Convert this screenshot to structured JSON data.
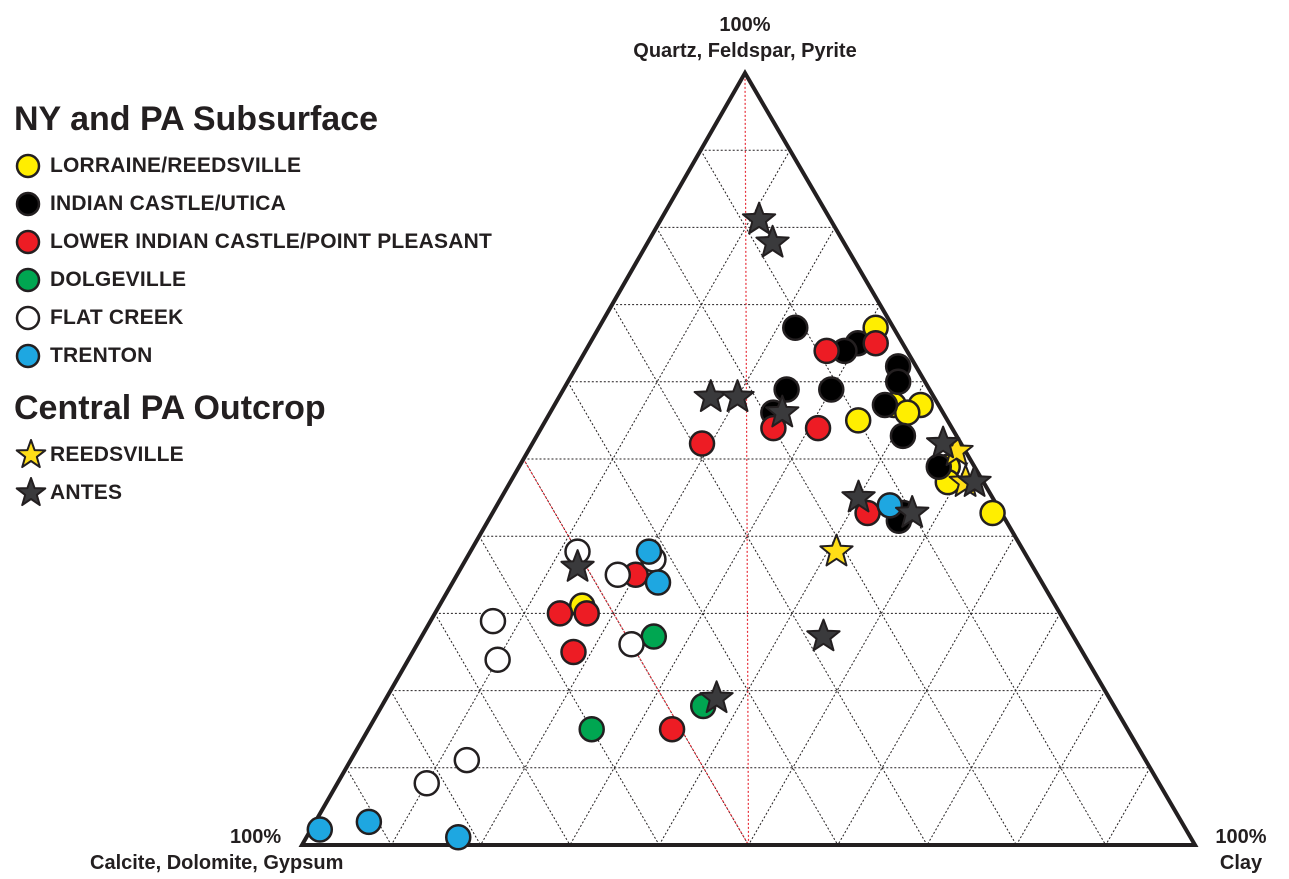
{
  "chart_data": {
    "type": "scatter",
    "subtype": "ternary",
    "vertices": {
      "top": {
        "pct": "100%",
        "name": "Quartz, Feldspar, Pyrite"
      },
      "left": {
        "pct": "100%",
        "name": "Calcite, Dolomite, Gypsum"
      },
      "right": {
        "pct": "100%",
        "name": "Clay"
      }
    },
    "grid": true,
    "grid_interval": 10,
    "highlight_triangle": {
      "qfp": [
        50,
        0,
        0
      ],
      "carb": [
        50,
        50,
        0
      ],
      "clay": [
        0,
        50,
        50
      ]
    },
    "legend": {
      "sections": [
        {
          "title": "NY and PA Subsurface",
          "items": [
            {
              "name": "LORRAINE/REEDSVILLE",
              "marker": "circle",
              "color": "#ffee00"
            },
            {
              "name": "INDIAN CASTLE/UTICA",
              "marker": "circle",
              "color": "#000000"
            },
            {
              "name": "LOWER INDIAN CASTLE/POINT PLEASANT",
              "marker": "circle",
              "color": "#ed1c24"
            },
            {
              "name": "DOLGEVILLE",
              "marker": "circle",
              "color": "#00a651"
            },
            {
              "name": "FLAT CREEK",
              "marker": "circle",
              "color": "#ffffff"
            },
            {
              "name": "TRENTON",
              "marker": "circle",
              "color": "#1ea7e1"
            }
          ]
        },
        {
          "title": "Central PA Outcrop",
          "items": [
            {
              "name": "REEDSVILLE",
              "marker": "star",
              "color": "#ffde17"
            },
            {
              "name": "ANTES",
              "marker": "star",
              "color": "#3a3a3c"
            }
          ]
        }
      ]
    },
    "series": [
      {
        "name": "LORRAINE/REEDSVILLE",
        "marker": "circle",
        "color": "#ffee00",
        "points": [
          {
            "qfp": 67,
            "carb": 2,
            "clay": 31
          },
          {
            "qfp": 57,
            "carb": 2,
            "clay": 41
          },
          {
            "qfp": 57,
            "carb": 5,
            "clay": 38
          },
          {
            "qfp": 56,
            "carb": 4,
            "clay": 40
          },
          {
            "qfp": 55,
            "carb": 10,
            "clay": 35
          },
          {
            "qfp": 49,
            "carb": 3,
            "clay": 48
          },
          {
            "qfp": 47,
            "carb": 4,
            "clay": 49
          },
          {
            "qfp": 43,
            "carb": 1,
            "clay": 56
          },
          {
            "qfp": 31,
            "carb": 53,
            "clay": 16
          }
        ]
      },
      {
        "name": "INDIAN CASTLE/UTICA",
        "marker": "circle",
        "color": "#000000",
        "points": [
          {
            "qfp": 67,
            "carb": 11,
            "clay": 22
          },
          {
            "qfp": 65,
            "carb": 5,
            "clay": 30
          },
          {
            "qfp": 64,
            "carb": 7,
            "clay": 29
          },
          {
            "qfp": 62,
            "carb": 2,
            "clay": 36
          },
          {
            "qfp": 60,
            "carb": 3,
            "clay": 37
          },
          {
            "qfp": 59,
            "carb": 11,
            "clay": 30
          },
          {
            "qfp": 59,
            "carb": 16,
            "clay": 25
          },
          {
            "qfp": 57,
            "carb": 6,
            "clay": 37
          },
          {
            "qfp": 56,
            "carb": 19,
            "clay": 25
          },
          {
            "qfp": 53,
            "carb": 6,
            "clay": 41
          },
          {
            "qfp": 49,
            "carb": 4,
            "clay": 47
          },
          {
            "qfp": 43,
            "carb": 11,
            "clay": 46
          },
          {
            "qfp": 42,
            "carb": 12,
            "clay": 46
          }
        ]
      },
      {
        "name": "LOWER INDIAN CASTLE/POINT PLEASANT",
        "marker": "circle",
        "color": "#ed1c24",
        "points": [
          {
            "qfp": 65,
            "carb": 3,
            "clay": 32
          },
          {
            "qfp": 64,
            "carb": 9,
            "clay": 27
          },
          {
            "qfp": 54,
            "carb": 15,
            "clay": 31
          },
          {
            "qfp": 54,
            "carb": 20,
            "clay": 26
          },
          {
            "qfp": 52,
            "carb": 29,
            "clay": 19
          },
          {
            "qfp": 43,
            "carb": 15,
            "clay": 42
          },
          {
            "qfp": 35,
            "carb": 45,
            "clay": 20
          },
          {
            "qfp": 30,
            "carb": 56,
            "clay": 14
          },
          {
            "qfp": 30,
            "carb": 53,
            "clay": 17
          },
          {
            "qfp": 25,
            "carb": 57,
            "clay": 18
          },
          {
            "qfp": 15,
            "carb": 51,
            "clay": 34
          }
        ]
      },
      {
        "name": "DOLGEVILLE",
        "marker": "circle",
        "color": "#00a651",
        "points": [
          {
            "qfp": 27,
            "carb": 47,
            "clay": 26
          },
          {
            "qfp": 18,
            "carb": 46,
            "clay": 36
          },
          {
            "qfp": 15,
            "carb": 60,
            "clay": 25
          }
        ]
      },
      {
        "name": "FLAT CREEK",
        "marker": "circle",
        "color": "#ffffff",
        "points": [
          {
            "qfp": 38,
            "carb": 50,
            "clay": 12
          },
          {
            "qfp": 37,
            "carb": 42,
            "clay": 21
          },
          {
            "qfp": 35,
            "carb": 47,
            "clay": 18
          },
          {
            "qfp": 29,
            "carb": 64,
            "clay": 7
          },
          {
            "qfp": 26,
            "carb": 50,
            "clay": 24
          },
          {
            "qfp": 24,
            "carb": 66,
            "clay": 10
          },
          {
            "qfp": 11,
            "carb": 76,
            "clay": 13
          },
          {
            "qfp": 8,
            "carb": 82,
            "clay": 10
          }
        ]
      },
      {
        "name": "TRENTON",
        "marker": "circle",
        "color": "#1ea7e1",
        "points": [
          {
            "qfp": 44,
            "carb": 12,
            "clay": 44
          },
          {
            "qfp": 38,
            "carb": 42,
            "clay": 20
          },
          {
            "qfp": 34,
            "carb": 43,
            "clay": 23
          },
          {
            "qfp": 2,
            "carb": 97,
            "clay": 1
          },
          {
            "qfp": 3,
            "carb": 91,
            "clay": 6
          },
          {
            "qfp": 1,
            "carb": 82,
            "clay": 17
          }
        ]
      },
      {
        "name": "REEDSVILLE",
        "marker": "star",
        "color": "#ffde17",
        "points": [
          {
            "qfp": 51,
            "carb": 1,
            "clay": 48
          },
          {
            "qfp": 47,
            "carb": 2,
            "clay": 51
          },
          {
            "qfp": 38,
            "carb": 21,
            "clay": 41
          }
        ]
      },
      {
        "name": "ANTES",
        "marker": "star",
        "color": "#3a3a3c",
        "points": [
          {
            "qfp": 81,
            "carb": 8,
            "clay": 11
          },
          {
            "qfp": 78,
            "carb": 8,
            "clay": 14
          },
          {
            "qfp": 58,
            "carb": 25,
            "clay": 17
          },
          {
            "qfp": 58,
            "carb": 22,
            "clay": 20
          },
          {
            "qfp": 56,
            "carb": 18,
            "clay": 26
          },
          {
            "qfp": 52,
            "carb": 2,
            "clay": 46
          },
          {
            "qfp": 47,
            "carb": 1,
            "clay": 52
          },
          {
            "qfp": 45,
            "carb": 15,
            "clay": 40
          },
          {
            "qfp": 43,
            "carb": 10,
            "clay": 47
          },
          {
            "qfp": 36,
            "carb": 51,
            "clay": 13
          },
          {
            "qfp": 27,
            "carb": 28,
            "clay": 45
          },
          {
            "qfp": 19,
            "carb": 44,
            "clay": 37
          }
        ]
      }
    ]
  }
}
